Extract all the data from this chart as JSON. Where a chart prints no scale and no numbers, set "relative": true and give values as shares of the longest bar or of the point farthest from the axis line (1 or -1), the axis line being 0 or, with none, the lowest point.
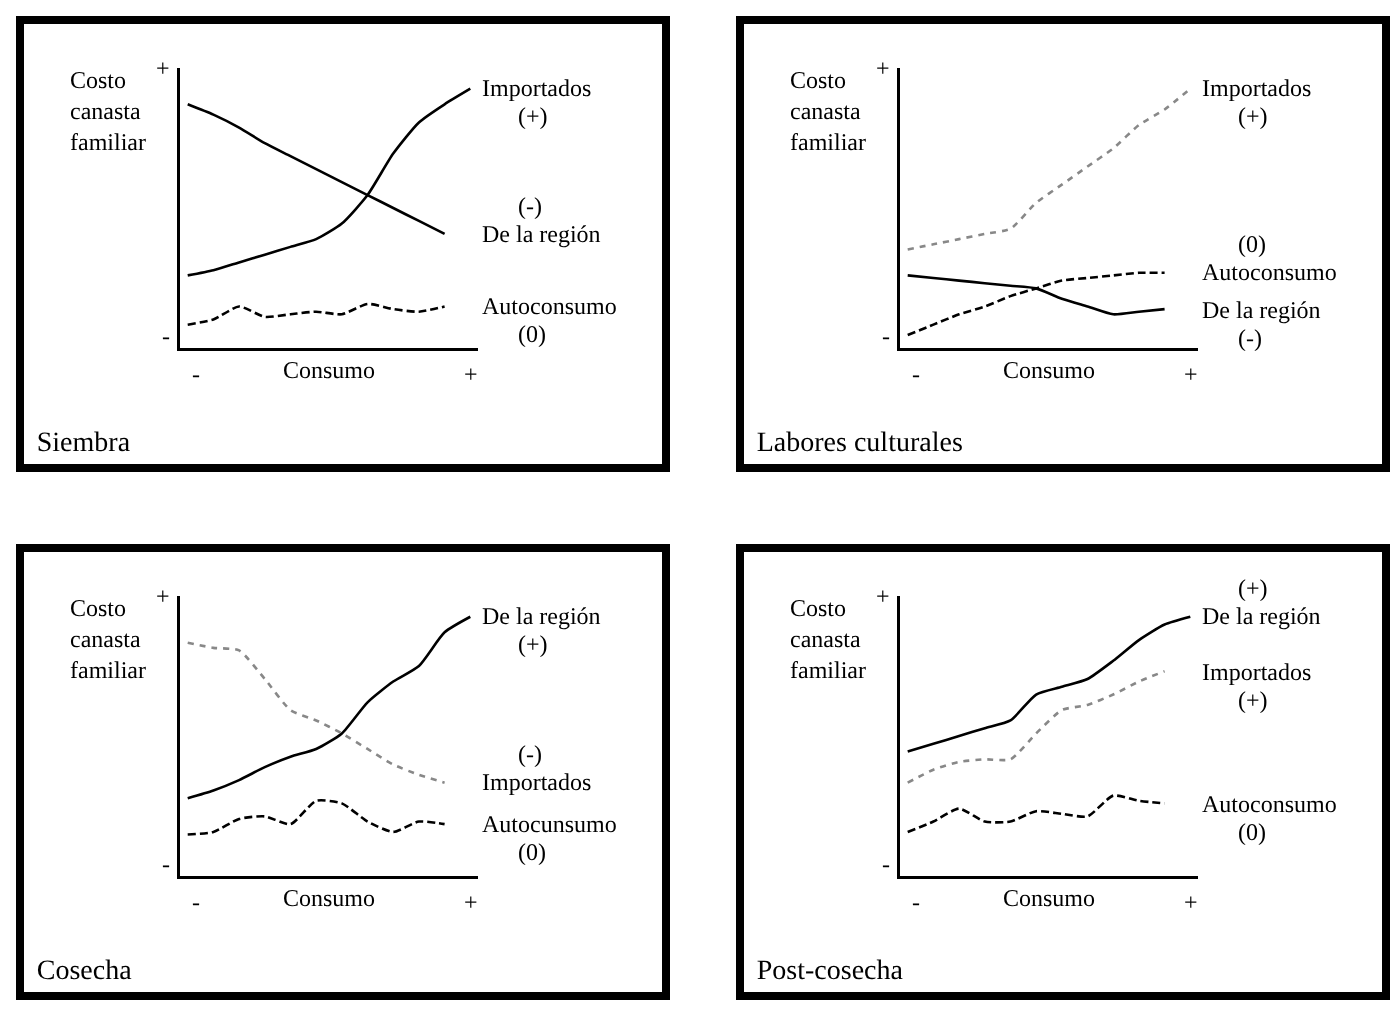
{
  "chart_data": [
    {
      "type": "line",
      "title": "Siembra",
      "xlabel": "Consumo",
      "ylabel": "Costo canasta familiar",
      "relative": true,
      "categories": [
        null,
        null,
        null,
        null,
        null,
        null,
        null,
        null,
        null,
        null,
        null,
        null
      ],
      "annotations": [
        "+",
        "-",
        "-",
        "+",
        "(+)",
        "(-)",
        "(0)"
      ],
      "series": [
        {
          "name": "Importados",
          "color": "#000000",
          "line_style": "solid",
          "values": [
            0.28,
            0.3,
            0.33,
            0.36,
            0.39,
            0.42,
            0.48,
            0.59,
            0.75,
            0.87,
            0.94,
            1
          ]
        },
        {
          "name": "De la región",
          "color": "#000000",
          "line_style": "solid",
          "values": [
            0.94,
            0.9,
            0.85,
            0.79,
            0.74,
            0.69,
            0.64,
            0.59,
            0.54,
            0.49,
            0.44,
            null
          ]
        },
        {
          "name": "Autoconsumo",
          "color": "#000000",
          "line_style": "dashed",
          "values": [
            0.09,
            0.11,
            0.16,
            0.12,
            0.13,
            0.14,
            0.13,
            0.17,
            0.15,
            0.14,
            0.16,
            null
          ]
        }
      ]
    },
    {
      "type": "line",
      "title": "Labores culturales",
      "xlabel": "Consumo",
      "ylabel": "Costo canasta familiar",
      "relative": true,
      "categories": [
        null,
        null,
        null,
        null,
        null,
        null,
        null,
        null,
        null,
        null,
        null,
        null
      ],
      "annotations": [
        "+",
        "-",
        "-",
        "+",
        "(+)",
        "(0)",
        "(-)"
      ],
      "series": [
        {
          "name": "Importados",
          "color": "#888888",
          "line_style": "dotted",
          "values": [
            0.38,
            0.4,
            0.42,
            0.44,
            0.46,
            0.56,
            0.63,
            0.7,
            0.77,
            0.86,
            0.92,
            1
          ]
        },
        {
          "name": "Autoconsumo",
          "color": "#000000",
          "line_style": "dashed",
          "values": [
            0.05,
            0.09,
            0.13,
            0.16,
            0.2,
            0.23,
            0.26,
            0.27,
            0.28,
            0.29,
            0.29,
            null
          ]
        },
        {
          "name": "De la región",
          "color": "#000000",
          "line_style": "solid",
          "values": [
            0.28,
            0.27,
            0.26,
            0.25,
            0.24,
            0.23,
            0.19,
            0.16,
            0.13,
            0.14,
            0.15,
            null
          ]
        }
      ]
    },
    {
      "type": "line",
      "title": "Cosecha",
      "xlabel": "Consumo",
      "ylabel": "Costo canasta familiar",
      "relative": true,
      "categories": [
        null,
        null,
        null,
        null,
        null,
        null,
        null,
        null,
        null,
        null,
        null,
        null
      ],
      "annotations": [
        "+",
        "-",
        "-",
        "+",
        "(+)",
        "(-)",
        "(0)"
      ],
      "series": [
        {
          "name": "De la región",
          "color": "#000000",
          "line_style": "solid",
          "values": [
            0.3,
            0.33,
            0.37,
            0.42,
            0.46,
            0.49,
            0.55,
            0.67,
            0.75,
            0.81,
            0.94,
            1
          ]
        },
        {
          "name": "Importados",
          "color": "#888888",
          "line_style": "dotted",
          "values": [
            0.9,
            0.88,
            0.87,
            0.76,
            0.64,
            0.6,
            0.55,
            0.49,
            0.43,
            0.39,
            0.36,
            null
          ]
        },
        {
          "name": "Autocunsumo",
          "color": "#000000",
          "line_style": "dashed",
          "values": [
            0.16,
            0.17,
            0.22,
            0.23,
            0.2,
            0.29,
            0.28,
            0.21,
            0.17,
            0.21,
            0.2,
            null
          ]
        }
      ]
    },
    {
      "type": "line",
      "title": "Post-cosecha",
      "xlabel": "Consumo",
      "ylabel": "Costo canasta familiar",
      "relative": true,
      "categories": [
        null,
        null,
        null,
        null,
        null,
        null,
        null,
        null,
        null,
        null,
        null,
        null
      ],
      "annotations": [
        "+",
        "-",
        "-",
        "+",
        "(+)",
        "(+)",
        "(0)"
      ],
      "series": [
        {
          "name": "De la región",
          "color": "#000000",
          "line_style": "solid",
          "values": [
            0.48,
            0.51,
            0.54,
            0.57,
            0.6,
            0.7,
            0.73,
            0.76,
            0.83,
            0.91,
            0.97,
            1
          ]
        },
        {
          "name": "Importados",
          "color": "#888888",
          "line_style": "dotted",
          "values": [
            0.36,
            0.41,
            0.44,
            0.45,
            0.45,
            0.55,
            0.64,
            0.66,
            0.7,
            0.75,
            0.79,
            null
          ]
        },
        {
          "name": "Autoconsumo",
          "color": "#000000",
          "line_style": "dashed",
          "values": [
            0.17,
            0.21,
            0.26,
            0.21,
            0.21,
            0.25,
            0.24,
            0.23,
            0.31,
            0.29,
            0.28,
            null
          ]
        }
      ]
    }
  ]
}
